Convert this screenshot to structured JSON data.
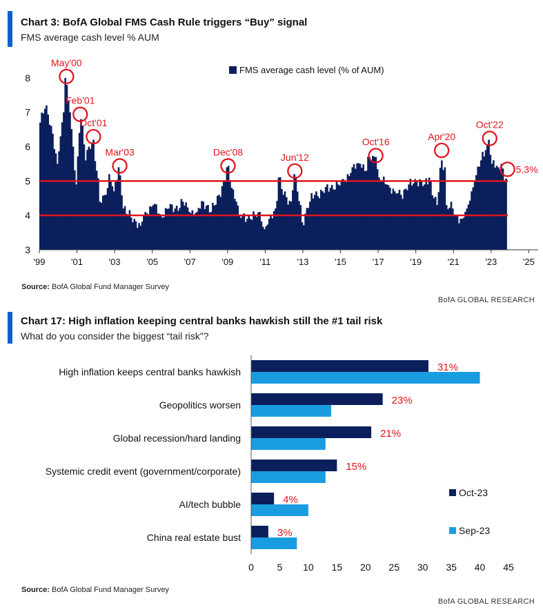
{
  "chart_data": [
    {
      "type": "bar",
      "title": "Chart 3: BofA Global FMS Cash Rule triggers “Buy” signal",
      "subtitle": "FMS average cash level % AUM",
      "series": [
        {
          "name": "FMS average cash level (% of AUM)"
        }
      ],
      "x_ticks": [
        "'99",
        "'01",
        "'03",
        "'05",
        "'07",
        "'09",
        "'11",
        "'13",
        "'15",
        "'17",
        "'19",
        "'21",
        "'23",
        "'25"
      ],
      "y_ticks": [
        "3",
        "4",
        "5",
        "6",
        "7",
        "8"
      ],
      "ylim": [
        3,
        8.5
      ],
      "xlim": [
        1999.0,
        2025.5
      ],
      "threshold_lines": [
        5.0,
        4.0
      ],
      "anchors": [
        [
          1999.0,
          6.7
        ],
        [
          1999.3,
          7.2
        ],
        [
          1999.6,
          6.6
        ],
        [
          1999.9,
          5.5
        ],
        [
          2000.1,
          6.3
        ],
        [
          2000.25,
          7.0
        ],
        [
          2000.37,
          8.0
        ],
        [
          2000.55,
          7.0
        ],
        [
          2000.75,
          6.0
        ],
        [
          2000.9,
          4.9
        ],
        [
          2001.1,
          6.4
        ],
        [
          2001.2,
          6.8
        ],
        [
          2001.4,
          5.6
        ],
        [
          2001.6,
          6.0
        ],
        [
          2001.8,
          6.2
        ],
        [
          2002.0,
          5.3
        ],
        [
          2002.2,
          4.4
        ],
        [
          2002.5,
          4.6
        ],
        [
          2002.7,
          5.2
        ],
        [
          2002.9,
          4.7
        ],
        [
          2003.2,
          5.4
        ],
        [
          2003.45,
          4.2
        ],
        [
          2003.7,
          4.0
        ],
        [
          2004.0,
          3.9
        ],
        [
          2004.3,
          3.7
        ],
        [
          2004.6,
          4.1
        ],
        [
          2005.0,
          4.3
        ],
        [
          2005.4,
          4.0
        ],
        [
          2005.8,
          4.2
        ],
        [
          2006.2,
          4.2
        ],
        [
          2006.6,
          4.4
        ],
        [
          2006.9,
          4.1
        ],
        [
          2007.3,
          4.1
        ],
        [
          2007.7,
          4.4
        ],
        [
          2008.1,
          4.1
        ],
        [
          2008.5,
          4.6
        ],
        [
          2008.8,
          5.0
        ],
        [
          2008.95,
          5.4
        ],
        [
          2009.2,
          4.8
        ],
        [
          2009.4,
          4.4
        ],
        [
          2009.6,
          4.0
        ],
        [
          2010.0,
          3.9
        ],
        [
          2010.4,
          4.0
        ],
        [
          2010.7,
          4.1
        ],
        [
          2010.9,
          3.6
        ],
        [
          2011.2,
          3.9
        ],
        [
          2011.5,
          4.2
        ],
        [
          2011.7,
          5.1
        ],
        [
          2011.9,
          4.6
        ],
        [
          2012.3,
          4.4
        ],
        [
          2012.5,
          5.2
        ],
        [
          2012.8,
          4.3
        ],
        [
          2012.95,
          3.8
        ],
        [
          2013.3,
          4.4
        ],
        [
          2013.6,
          4.6
        ],
        [
          2014.0,
          4.7
        ],
        [
          2014.4,
          4.8
        ],
        [
          2014.8,
          4.9
        ],
        [
          2015.2,
          5.0
        ],
        [
          2015.6,
          5.4
        ],
        [
          2016.0,
          5.5
        ],
        [
          2016.3,
          5.3
        ],
        [
          2016.5,
          5.7
        ],
        [
          2016.8,
          5.7
        ],
        [
          2017.0,
          5.1
        ],
        [
          2017.4,
          4.9
        ],
        [
          2017.8,
          4.7
        ],
        [
          2018.2,
          4.6
        ],
        [
          2018.6,
          4.9
        ],
        [
          2019.0,
          5.0
        ],
        [
          2019.4,
          4.9
        ],
        [
          2019.7,
          5.1
        ],
        [
          2019.9,
          4.5
        ],
        [
          2020.1,
          4.3
        ],
        [
          2020.3,
          5.6
        ],
        [
          2020.5,
          5.4
        ],
        [
          2020.6,
          4.3
        ],
        [
          2020.9,
          4.2
        ],
        [
          2021.1,
          4.0
        ],
        [
          2021.4,
          3.9
        ],
        [
          2021.7,
          4.2
        ],
        [
          2021.9,
          4.7
        ],
        [
          2022.1,
          5.0
        ],
        [
          2022.4,
          5.6
        ],
        [
          2022.7,
          5.9
        ],
        [
          2022.85,
          6.2
        ],
        [
          2023.0,
          5.5
        ],
        [
          2023.3,
          5.4
        ],
        [
          2023.5,
          5.5
        ],
        [
          2023.7,
          5.0
        ],
        [
          2023.8,
          5.3
        ]
      ],
      "annotations": [
        {
          "label": "May'00",
          "x": 2000.37,
          "y": 8.0
        },
        {
          "label": "Feb'01",
          "x": 2001.1,
          "y": 6.9
        },
        {
          "label": "Oct'01",
          "x": 2001.8,
          "y": 6.25
        },
        {
          "label": "Mar'03",
          "x": 2003.2,
          "y": 5.4
        },
        {
          "label": "Dec'08",
          "x": 2008.95,
          "y": 5.4
        },
        {
          "label": "Jun'12",
          "x": 2012.5,
          "y": 5.25
        },
        {
          "label": "Oct'16",
          "x": 2016.8,
          "y": 5.7
        },
        {
          "label": "Apr'20",
          "x": 2020.3,
          "y": 5.85
        },
        {
          "label": "Oct'22",
          "x": 2022.85,
          "y": 6.2
        },
        {
          "label": "5.3%",
          "x": 2023.8,
          "y": 5.3
        }
      ]
    },
    {
      "type": "bar",
      "orientation": "horizontal",
      "title": "Chart 17: High inflation keeping central banks hawkish still the #1 tail risk",
      "subtitle": "What do you consider the biggest “tail risk”?",
      "categories": [
        "High inflation keeps central banks hawkish",
        "Geopolitics worsen",
        "Global recession/hard landing",
        "Systemic credit event (government/corporate)",
        "AI/tech bubble",
        "China real estate bust"
      ],
      "series": [
        {
          "name": "Oct-23",
          "values": [
            31,
            23,
            21,
            15,
            4,
            3
          ],
          "color": "#0b1f5c"
        },
        {
          "name": "Sep-23",
          "values": [
            40,
            14,
            13,
            13,
            10,
            8
          ],
          "color": "#1a9de0"
        }
      ],
      "data_labels": [
        "31%",
        "23%",
        "21%",
        "15%",
        "4%",
        "3%"
      ],
      "x_ticks": [
        0,
        5,
        10,
        15,
        20,
        25,
        30,
        35,
        40,
        45
      ],
      "xlim": [
        0,
        45
      ]
    }
  ],
  "source_label": "Source:",
  "source_text": "BofA Global Fund Manager Survey",
  "brand": "BofA GLOBAL RESEARCH",
  "colors": {
    "navy": "#0b1f5c",
    "sky": "#1a9de0",
    "red": "#e0141e",
    "accent_bar": "#0a61c9"
  }
}
